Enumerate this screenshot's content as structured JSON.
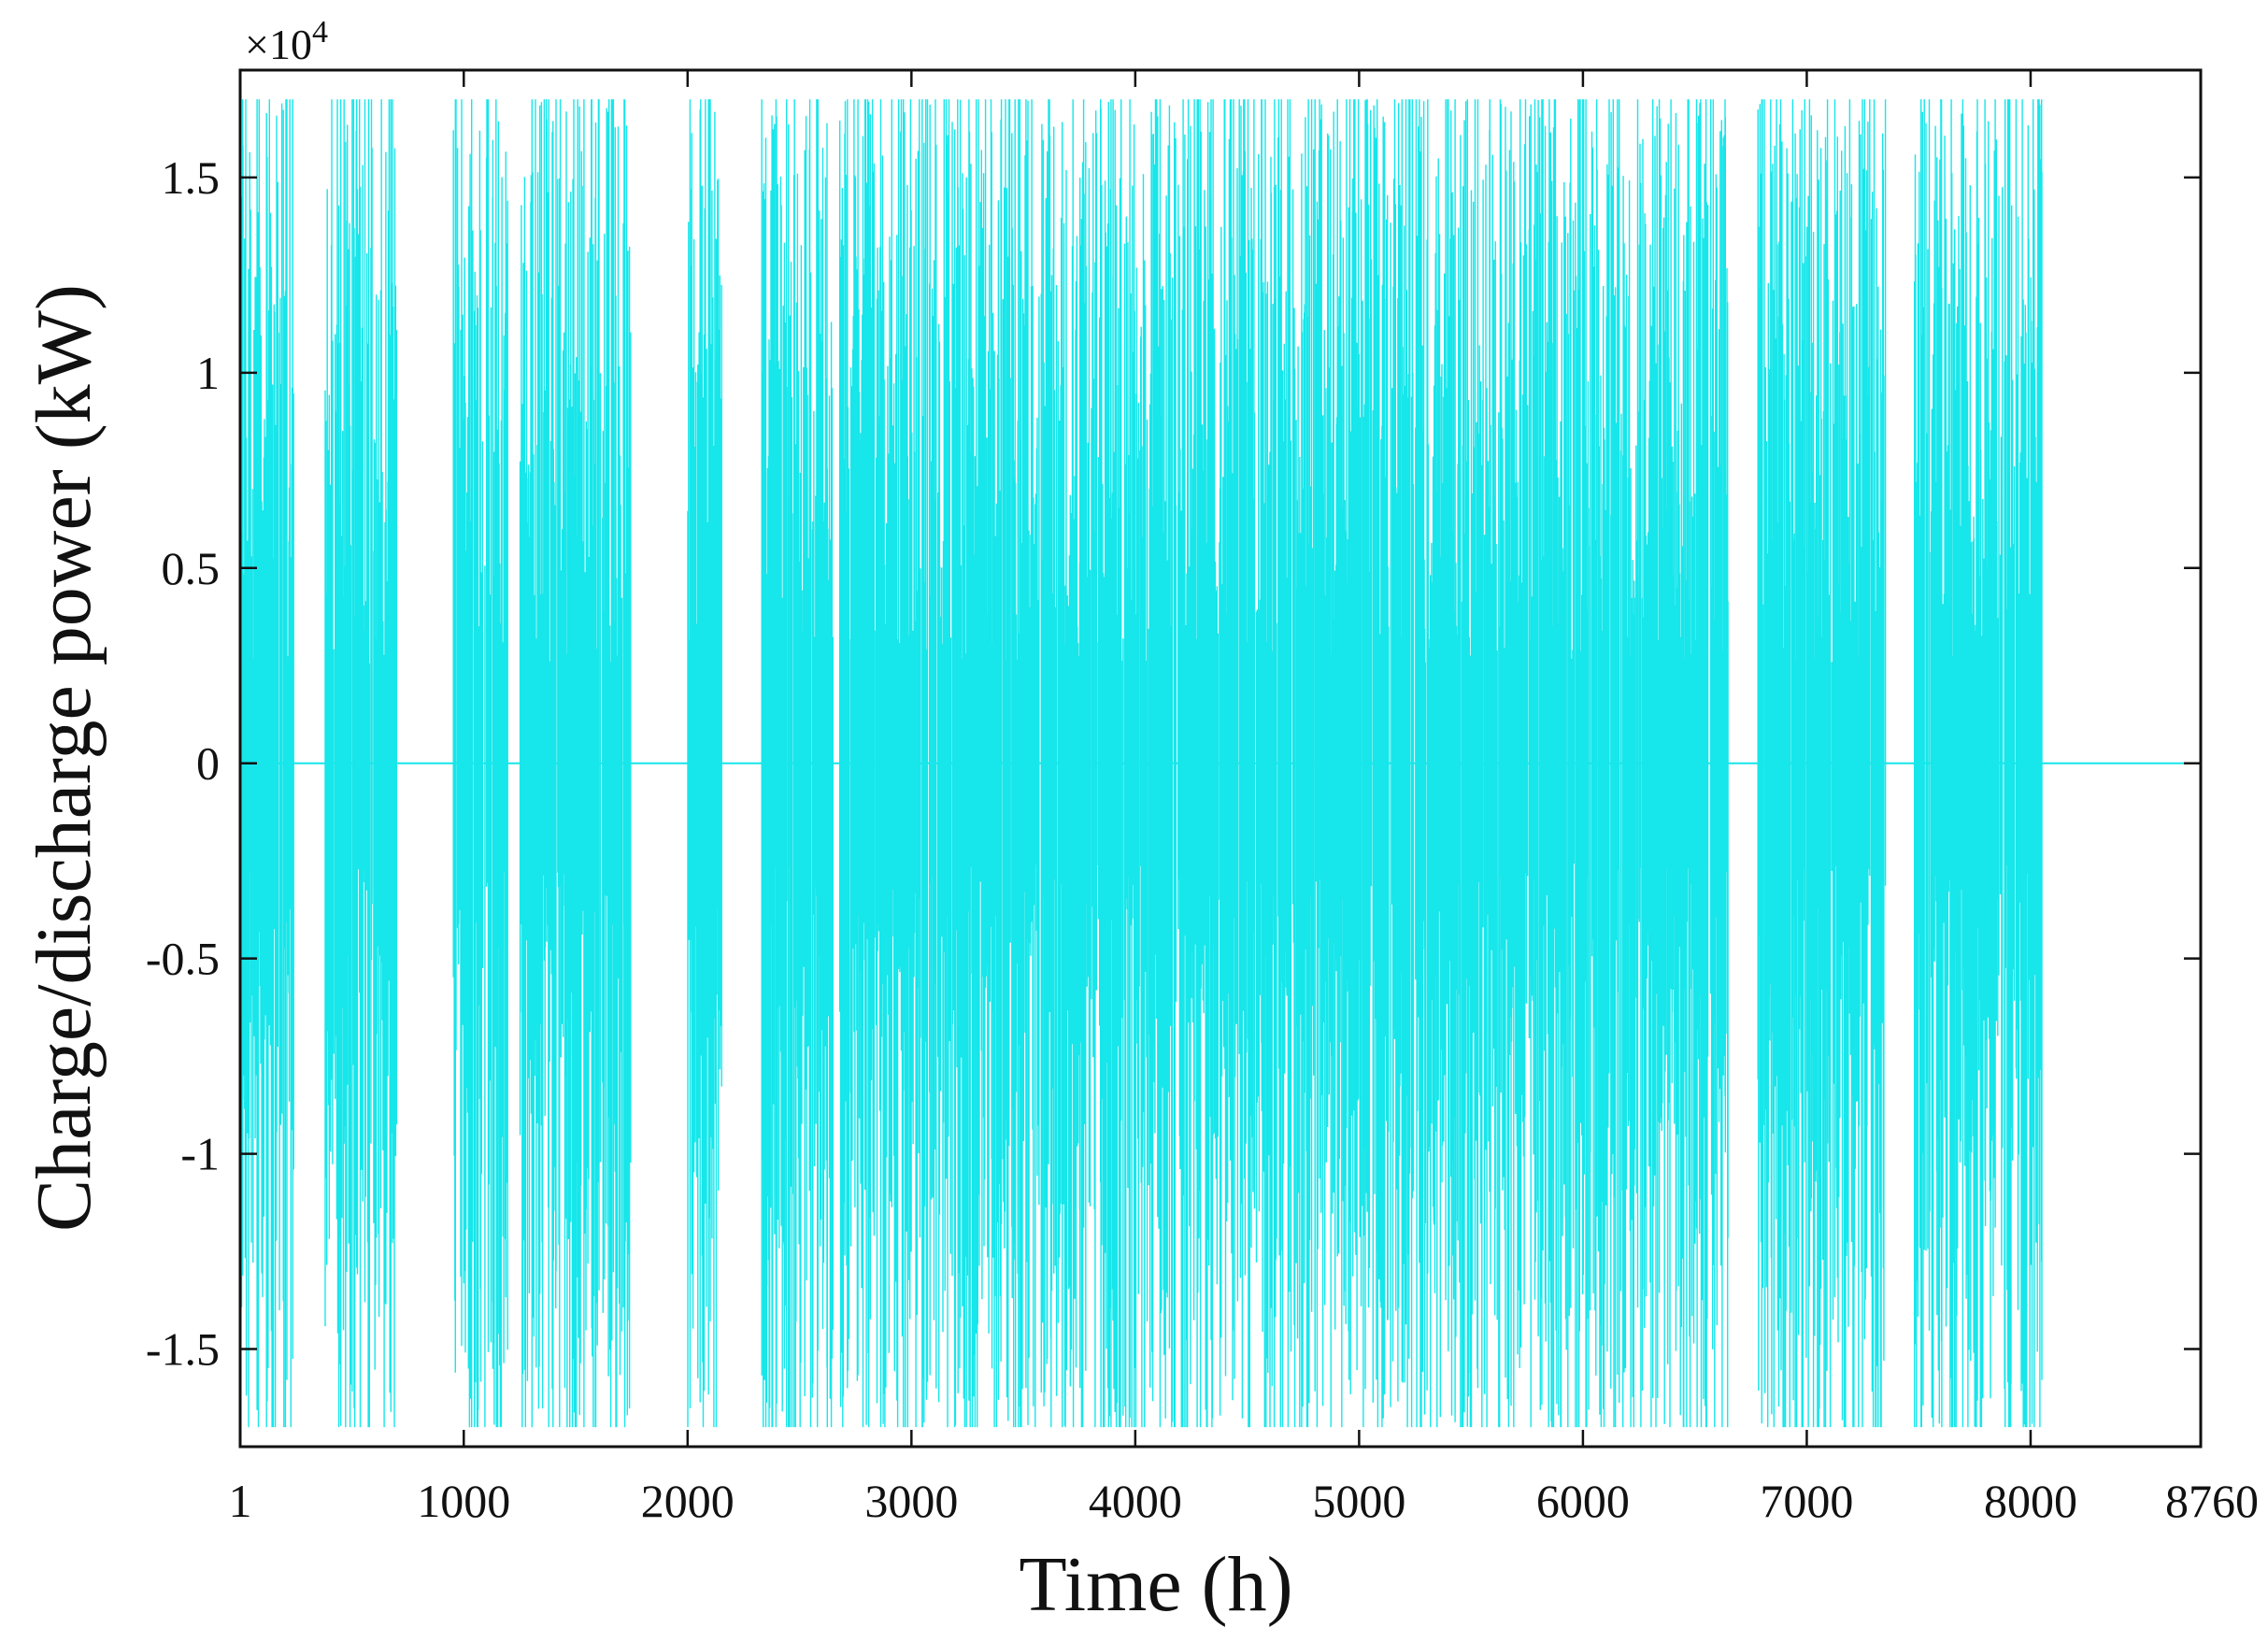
{
  "chart_data": {
    "type": "line",
    "title": "",
    "xlabel": "Time (h)",
    "ylabel": "Charge/discharge power (kW)",
    "y_exponent_label": "×10",
    "y_exponent_power": "4",
    "y_scale_factor": 10000,
    "xlim": [
      1,
      8760
    ],
    "ylim": [
      -17500,
      17750
    ],
    "xticks": [
      1,
      1000,
      2000,
      3000,
      4000,
      5000,
      6000,
      7000,
      8000,
      8760
    ],
    "xtick_labels": [
      "1",
      "1000",
      "2000",
      "3000",
      "4000",
      "5000",
      "6000",
      "7000",
      "8000",
      "8760"
    ],
    "yticks": [
      -15000,
      -10000,
      -5000,
      0,
      5000,
      10000,
      15000
    ],
    "ytick_labels": [
      "-1.5",
      "-1",
      "-0.5",
      "0",
      "0.5",
      "1",
      "1.5"
    ],
    "grid": false,
    "legend": "none",
    "colors": {
      "series": "#17e6ea",
      "axes": "#111111",
      "background": "#ffffff"
    },
    "series": [
      {
        "envelope_max": 17000,
        "envelope_min": -17000,
        "active_periods_h": [
          [
            1,
            240
          ],
          [
            380,
            700
          ],
          [
            950,
            1200
          ],
          [
            1250,
            1750
          ],
          [
            2000,
            2150
          ],
          [
            2330,
            2650
          ],
          [
            2680,
            3300
          ],
          [
            3300,
            3900
          ],
          [
            3900,
            4400
          ],
          [
            4400,
            4900
          ],
          [
            4900,
            5500
          ],
          [
            5500,
            6000
          ],
          [
            6000,
            6650
          ],
          [
            6780,
            7350
          ],
          [
            7480,
            8050
          ]
        ],
        "baseline_after_h": 8050,
        "baseline_value": 0
      }
    ]
  }
}
